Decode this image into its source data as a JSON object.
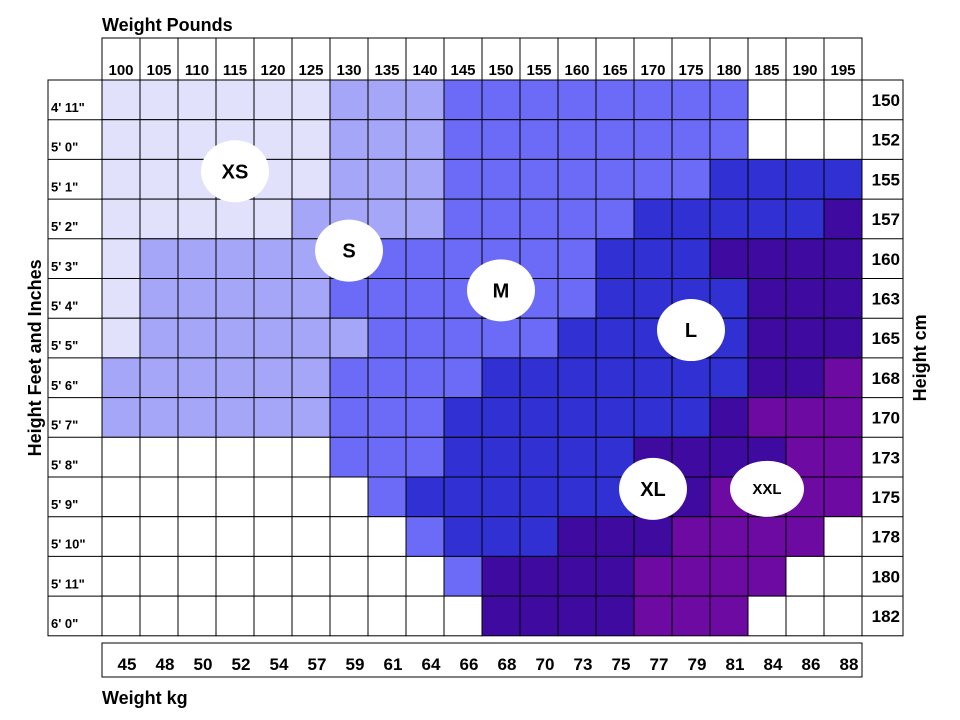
{
  "chart_data": {
    "type": "heatmap",
    "top_axis_title": "Weight Pounds",
    "bottom_axis_title": "Weight kg",
    "left_axis_title": "Height Feet and Inches",
    "right_axis_title": "Height cm",
    "weight_pounds": [
      "100",
      "105",
      "110",
      "115",
      "120",
      "125",
      "130",
      "135",
      "140",
      "145",
      "150",
      "155",
      "160",
      "165",
      "170",
      "175",
      "180",
      "185",
      "190",
      "195"
    ],
    "weight_kg": [
      "45",
      "48",
      "50",
      "52",
      "54",
      "57",
      "59",
      "61",
      "64",
      "66",
      "68",
      "70",
      "73",
      "75",
      "77",
      "79",
      "81",
      "84",
      "86",
      "88"
    ],
    "height_ft_in": [
      "4' 11\"",
      "5' 0\"",
      "5' 1\"",
      "5' 2\"",
      "5' 3\"",
      "5' 4\"",
      "5' 5\"",
      "5' 6\"",
      "5' 7\"",
      "5' 8\"",
      "5' 9\"",
      "5' 10\"",
      "5' 11\"",
      "6' 0\""
    ],
    "height_cm": [
      "150",
      "152",
      "155",
      "157",
      "160",
      "163",
      "165",
      "168",
      "170",
      "173",
      "175",
      "178",
      "180",
      "182"
    ],
    "sizes": [
      "XS",
      "S",
      "M",
      "L",
      "XL",
      "XXL"
    ],
    "grid_codes": [
      "11111122233333333000",
      "11111122233333333000",
      "11111122233333334444",
      "11111222233333444445",
      "12222233333334445555",
      "12222233333334444555",
      "12222223333344444555",
      "22222233334444444556",
      "22222233344444445666",
      "00000033344444555566",
      "00000003444444556666",
      "00000000344455566660",
      "00000000035555666600",
      "00000000005555666000"
    ],
    "labels": [
      {
        "text": "XS",
        "col": 3,
        "row": 2
      },
      {
        "text": "S",
        "col": 6,
        "row": 4
      },
      {
        "text": "M",
        "col": 10,
        "row": 5
      },
      {
        "text": "L",
        "col": 15,
        "row": 6
      },
      {
        "text": "XL",
        "col": 14,
        "row": 10
      },
      {
        "text": "XXL",
        "col": 17,
        "row": 10
      }
    ],
    "colors": [
      "#ffffff",
      "#e1e1fb",
      "#a6a6f9",
      "#6b6bf7",
      "#3131d3",
      "#3f0aa0",
      "#6d0aa2"
    ]
  }
}
